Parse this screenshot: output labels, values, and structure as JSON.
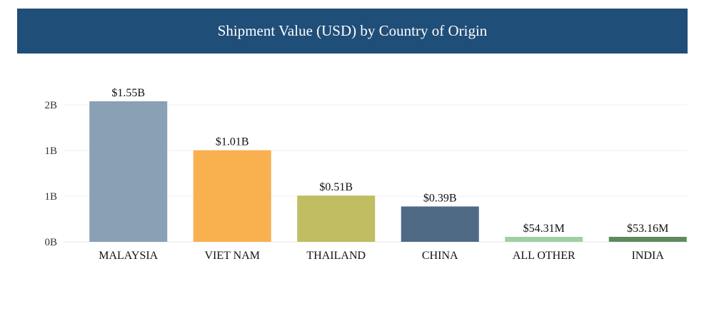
{
  "header": {
    "title": "Shipment Value (USD) by Country of Origin"
  },
  "chart_data": {
    "type": "bar",
    "title": "Shipment Value (USD) by Country of Origin",
    "xlabel": "",
    "ylabel": "",
    "categories": [
      "MALAYSIA",
      "VIET NAM",
      "THAILAND",
      "CHINA",
      "ALL OTHER",
      "INDIA"
    ],
    "values": [
      1550000000,
      1010000000,
      510000000,
      390000000,
      54310000,
      53160000
    ],
    "data_labels": [
      "$1.55B",
      "$1.01B",
      "$0.51B",
      "$0.39B",
      "$54.31M",
      "$53.16M"
    ],
    "colors": [
      "#8aa0b5",
      "#f9b04f",
      "#c0bd62",
      "#4e6a85",
      "#9fd0a4",
      "#5f8a5f"
    ],
    "y_ticks": [
      {
        "value": 0,
        "label": "0B"
      },
      {
        "value": 500000000,
        "label": "1B"
      },
      {
        "value": 1000000000,
        "label": "1B"
      },
      {
        "value": 1500000000,
        "label": "2B"
      }
    ],
    "ylim": [
      0,
      1550000000
    ],
    "grid": true,
    "legend": "none"
  }
}
